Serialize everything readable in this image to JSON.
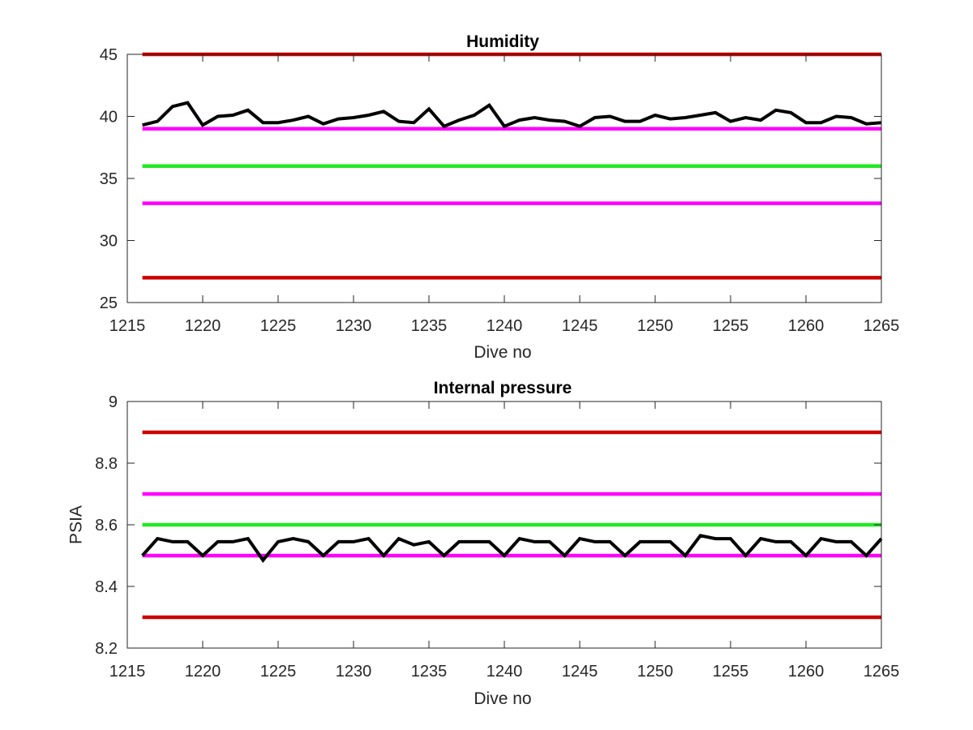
{
  "chart_data": [
    {
      "type": "line",
      "title": "Humidity",
      "xlabel": "Dive no",
      "ylabel": "",
      "xlim": [
        1215,
        1265
      ],
      "ylim": [
        25,
        45
      ],
      "xticks": [
        1215,
        1220,
        1225,
        1230,
        1235,
        1240,
        1245,
        1250,
        1255,
        1260,
        1265
      ],
      "yticks": [
        25,
        30,
        35,
        40,
        45
      ],
      "grid": false,
      "x": [
        1216,
        1217,
        1218,
        1219,
        1220,
        1221,
        1222,
        1223,
        1224,
        1225,
        1226,
        1227,
        1228,
        1229,
        1230,
        1231,
        1232,
        1233,
        1234,
        1235,
        1236,
        1237,
        1238,
        1239,
        1240,
        1241,
        1242,
        1243,
        1244,
        1245,
        1246,
        1247,
        1248,
        1249,
        1250,
        1251,
        1252,
        1253,
        1254,
        1255,
        1256,
        1257,
        1258,
        1259,
        1260,
        1261,
        1262,
        1263,
        1264,
        1265
      ],
      "series": [
        {
          "values": [
            39.3,
            39.6,
            40.8,
            41.1,
            39.3,
            40.0,
            40.1,
            40.5,
            39.5,
            39.5,
            39.7,
            40.0,
            39.4,
            39.8,
            39.9,
            40.1,
            40.4,
            39.6,
            39.5,
            40.6,
            39.2,
            39.7,
            40.1,
            40.9,
            39.2,
            39.7,
            39.9,
            39.7,
            39.6,
            39.2,
            39.9,
            40.0,
            39.6,
            39.6,
            40.1,
            39.8,
            39.9,
            40.1,
            40.3,
            39.6,
            39.9,
            39.7,
            40.5,
            40.3,
            39.5,
            39.5,
            40.0,
            39.9,
            39.4,
            39.5
          ],
          "color": "#000000"
        }
      ],
      "reference_lines": [
        {
          "y": 45,
          "color": "#cc0000"
        },
        {
          "y": 39,
          "color": "#ff00ff"
        },
        {
          "y": 36,
          "color": "#22e822"
        },
        {
          "y": 33,
          "color": "#ff00ff"
        },
        {
          "y": 27,
          "color": "#cc0000"
        }
      ]
    },
    {
      "type": "line",
      "title": "Internal pressure",
      "xlabel": "Dive no",
      "ylabel": "PSIA",
      "xlim": [
        1215,
        1265
      ],
      "ylim": [
        8.2,
        9
      ],
      "xticks": [
        1215,
        1220,
        1225,
        1230,
        1235,
        1240,
        1245,
        1250,
        1255,
        1260,
        1265
      ],
      "yticks": [
        "8.2",
        "8.4",
        "8.6",
        "8.8",
        "9"
      ],
      "grid": false,
      "x": [
        1216,
        1217,
        1218,
        1219,
        1220,
        1221,
        1222,
        1223,
        1224,
        1225,
        1226,
        1227,
        1228,
        1229,
        1230,
        1231,
        1232,
        1233,
        1234,
        1235,
        1236,
        1237,
        1238,
        1239,
        1240,
        1241,
        1242,
        1243,
        1244,
        1245,
        1246,
        1247,
        1248,
        1249,
        1250,
        1251,
        1252,
        1253,
        1254,
        1255,
        1256,
        1257,
        1258,
        1259,
        1260,
        1261,
        1262,
        1263,
        1264,
        1265
      ],
      "series": [
        {
          "values": [
            8.5,
            8.555,
            8.545,
            8.545,
            8.5,
            8.545,
            8.545,
            8.555,
            8.485,
            8.545,
            8.555,
            8.545,
            8.5,
            8.545,
            8.545,
            8.555,
            8.5,
            8.555,
            8.535,
            8.545,
            8.5,
            8.545,
            8.545,
            8.545,
            8.5,
            8.555,
            8.545,
            8.545,
            8.5,
            8.555,
            8.545,
            8.545,
            8.5,
            8.545,
            8.545,
            8.545,
            8.5,
            8.565,
            8.555,
            8.555,
            8.5,
            8.555,
            8.545,
            8.545,
            8.5,
            8.555,
            8.545,
            8.545,
            8.5,
            8.555
          ],
          "color": "#000000"
        }
      ],
      "reference_lines": [
        {
          "y": 8.9,
          "color": "#cc0000"
        },
        {
          "y": 8.7,
          "color": "#ff00ff"
        },
        {
          "y": 8.6,
          "color": "#22e822"
        },
        {
          "y": 8.5,
          "color": "#ff00ff"
        },
        {
          "y": 8.3,
          "color": "#cc0000"
        }
      ]
    }
  ]
}
